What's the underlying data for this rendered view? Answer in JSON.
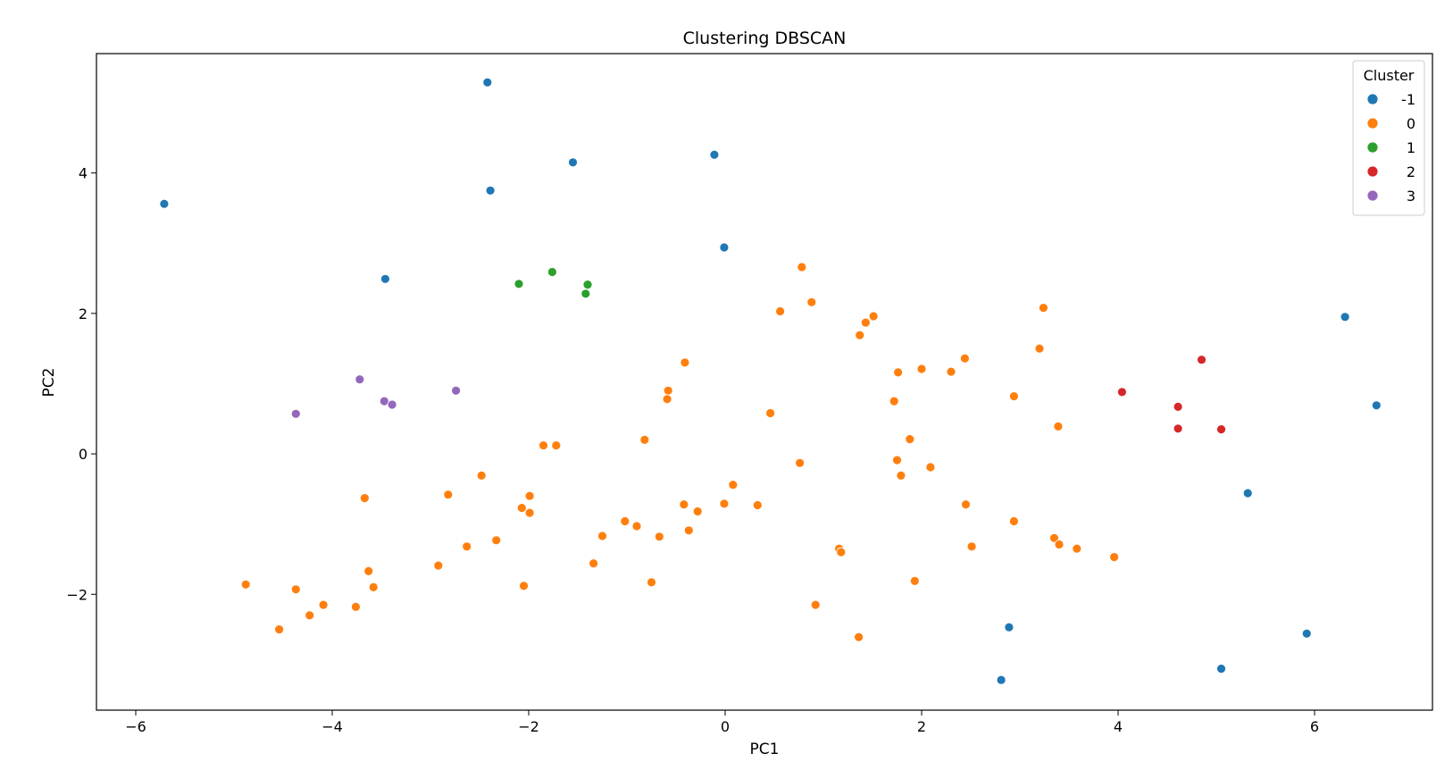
{
  "chart_data": {
    "type": "scatter",
    "title": "Clustering DBSCAN",
    "xlabel": "PC1",
    "ylabel": "PC2",
    "xlim": [
      -6.4,
      7.2
    ],
    "ylim": [
      -3.65,
      5.7
    ],
    "xticks": [
      -6,
      -4,
      -2,
      0,
      2,
      4,
      6
    ],
    "yticks": [
      -2,
      0,
      2,
      4
    ],
    "tick_labels": {
      "x": [
        "−6",
        "−4",
        "−2",
        "0",
        "2",
        "4",
        "6"
      ],
      "y": [
        "−2",
        "0",
        "2",
        "4"
      ]
    },
    "grid": false,
    "legend": {
      "title": "Cluster",
      "position": "top-right"
    },
    "series": [
      {
        "name": "-1",
        "color": "#1f77b4",
        "points": [
          [
            -2.42,
            5.29
          ],
          [
            -5.71,
            3.56
          ],
          [
            -2.39,
            3.75
          ],
          [
            -1.55,
            4.15
          ],
          [
            -0.11,
            4.26
          ],
          [
            -0.01,
            2.94
          ],
          [
            -3.46,
            2.49
          ],
          [
            6.31,
            1.95
          ],
          [
            6.63,
            0.69
          ],
          [
            5.32,
            -0.56
          ],
          [
            2.89,
            -2.47
          ],
          [
            5.92,
            -2.56
          ],
          [
            5.05,
            -3.06
          ],
          [
            2.81,
            -3.22
          ]
        ]
      },
      {
        "name": "0",
        "color": "#ff7f0e",
        "points": [
          [
            0.78,
            2.66
          ],
          [
            0.88,
            2.16
          ],
          [
            3.24,
            2.08
          ],
          [
            0.56,
            2.03
          ],
          [
            1.51,
            1.96
          ],
          [
            1.43,
            1.87
          ],
          [
            1.37,
            1.69
          ],
          [
            3.2,
            1.5
          ],
          [
            2.44,
            1.36
          ],
          [
            -0.41,
            1.3
          ],
          [
            2.0,
            1.21
          ],
          [
            1.76,
            1.16
          ],
          [
            2.3,
            1.17
          ],
          [
            -0.58,
            0.9
          ],
          [
            -0.59,
            0.78
          ],
          [
            2.94,
            0.82
          ],
          [
            1.72,
            0.75
          ],
          [
            0.46,
            0.58
          ],
          [
            3.39,
            0.39
          ],
          [
            -0.82,
            0.2
          ],
          [
            1.88,
            0.21
          ],
          [
            -1.85,
            0.12
          ],
          [
            -1.72,
            0.12
          ],
          [
            0.76,
            -0.13
          ],
          [
            1.75,
            -0.09
          ],
          [
            2.09,
            -0.19
          ],
          [
            1.79,
            -0.31
          ],
          [
            -2.48,
            -0.31
          ],
          [
            -2.82,
            -0.58
          ],
          [
            0.08,
            -0.44
          ],
          [
            -3.67,
            -0.63
          ],
          [
            -1.99,
            -0.6
          ],
          [
            -0.01,
            -0.71
          ],
          [
            0.33,
            -0.73
          ],
          [
            2.45,
            -0.72
          ],
          [
            -0.42,
            -0.72
          ],
          [
            -0.28,
            -0.82
          ],
          [
            -2.07,
            -0.77
          ],
          [
            -1.99,
            -0.84
          ],
          [
            -1.02,
            -0.96
          ],
          [
            -0.9,
            -1.03
          ],
          [
            2.94,
            -0.96
          ],
          [
            -0.37,
            -1.09
          ],
          [
            -1.25,
            -1.17
          ],
          [
            -0.67,
            -1.18
          ],
          [
            3.35,
            -1.2
          ],
          [
            -2.33,
            -1.23
          ],
          [
            -2.63,
            -1.32
          ],
          [
            2.51,
            -1.32
          ],
          [
            3.4,
            -1.29
          ],
          [
            3.58,
            -1.35
          ],
          [
            1.16,
            -1.35
          ],
          [
            1.18,
            -1.4
          ],
          [
            3.96,
            -1.47
          ],
          [
            -1.34,
            -1.56
          ],
          [
            -2.92,
            -1.59
          ],
          [
            -3.63,
            -1.67
          ],
          [
            -0.75,
            -1.83
          ],
          [
            -4.88,
            -1.86
          ],
          [
            -2.05,
            -1.88
          ],
          [
            1.93,
            -1.81
          ],
          [
            -3.58,
            -1.9
          ],
          [
            -4.37,
            -1.93
          ],
          [
            -4.09,
            -2.15
          ],
          [
            -3.76,
            -2.18
          ],
          [
            0.92,
            -2.15
          ],
          [
            -4.23,
            -2.3
          ],
          [
            -4.54,
            -2.5
          ],
          [
            1.36,
            -2.61
          ]
        ]
      },
      {
        "name": "1",
        "color": "#2ca02c",
        "points": [
          [
            -1.76,
            2.59
          ],
          [
            -2.1,
            2.42
          ],
          [
            -1.4,
            2.41
          ],
          [
            -1.42,
            2.28
          ]
        ]
      },
      {
        "name": "2",
        "color": "#d62728",
        "points": [
          [
            4.85,
            1.34
          ],
          [
            4.04,
            0.88
          ],
          [
            4.61,
            0.67
          ],
          [
            4.61,
            0.36
          ],
          [
            5.05,
            0.35
          ]
        ]
      },
      {
        "name": "3",
        "color": "#9467bd",
        "points": [
          [
            -3.72,
            1.06
          ],
          [
            -2.74,
            0.9
          ],
          [
            -3.47,
            0.75
          ],
          [
            -3.39,
            0.7
          ],
          [
            -4.37,
            0.57
          ]
        ]
      }
    ]
  }
}
